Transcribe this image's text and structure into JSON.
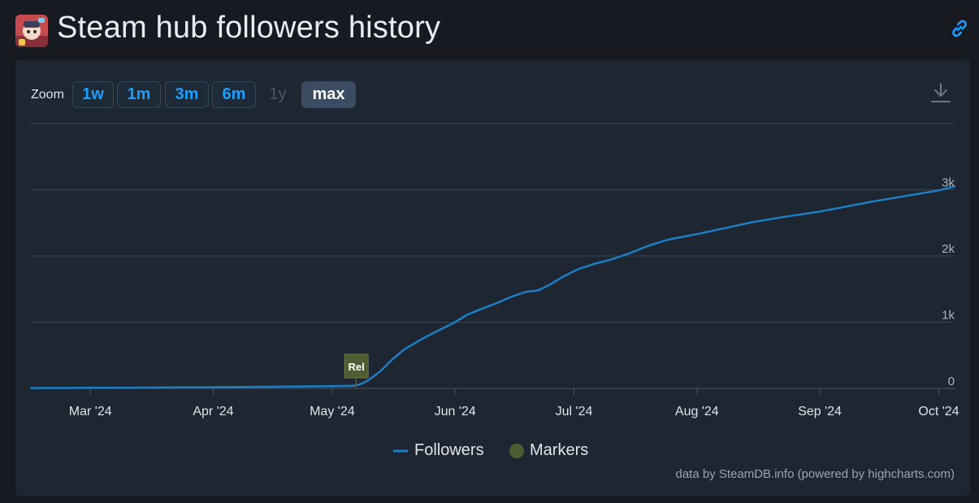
{
  "header": {
    "title": "Steam hub followers history",
    "app_icon": "game-capsule-icon",
    "link_icon": "link-icon"
  },
  "toolbar": {
    "zoom_label": "Zoom",
    "buttons": [
      {
        "label": "1w",
        "state": "enabled"
      },
      {
        "label": "1m",
        "state": "enabled"
      },
      {
        "label": "3m",
        "state": "enabled"
      },
      {
        "label": "6m",
        "state": "enabled"
      },
      {
        "label": "1y",
        "state": "disabled"
      },
      {
        "label": "max",
        "state": "active"
      }
    ],
    "download_icon": "download-icon"
  },
  "colors": {
    "page_bg": "#171a21",
    "panel_bg": "#1e2631",
    "series": "#1a7fc7",
    "marker": "#4f5d32",
    "grid": "#3a4452",
    "accent": "#1a9fff"
  },
  "chart_data": {
    "type": "line",
    "title": "Steam hub followers history",
    "xlabel": "",
    "ylabel": "",
    "x_type": "datetime",
    "x_range": [
      "2024-02-15",
      "2024-10-05"
    ],
    "ylim": [
      0,
      4000
    ],
    "y_ticks": [
      0,
      1000,
      2000,
      3000
    ],
    "y_tick_labels": [
      "0",
      "1k",
      "2k",
      "3k"
    ],
    "y_axis_position": "right",
    "x_ticks": [
      "2024-03-01",
      "2024-04-01",
      "2024-05-01",
      "2024-06-01",
      "2024-07-01",
      "2024-08-01",
      "2024-09-01",
      "2024-10-01"
    ],
    "x_tick_labels": [
      "Mar '24",
      "Apr '24",
      "May '24",
      "Jun '24",
      "Jul '24",
      "Aug '24",
      "Sep '24",
      "Oct '24"
    ],
    "grid": true,
    "legend": {
      "position": "bottom-center",
      "entries": [
        "Followers",
        "Markers"
      ]
    },
    "series": [
      {
        "name": "Followers",
        "color": "#1a7fc7",
        "points": [
          [
            "2024-02-15",
            5
          ],
          [
            "2024-03-01",
            8
          ],
          [
            "2024-03-15",
            12
          ],
          [
            "2024-04-01",
            18
          ],
          [
            "2024-04-15",
            25
          ],
          [
            "2024-05-01",
            33
          ],
          [
            "2024-05-06",
            38
          ],
          [
            "2024-05-08",
            60
          ],
          [
            "2024-05-10",
            120
          ],
          [
            "2024-05-13",
            250
          ],
          [
            "2024-05-16",
            430
          ],
          [
            "2024-05-19",
            580
          ],
          [
            "2024-05-22",
            690
          ],
          [
            "2024-05-25",
            790
          ],
          [
            "2024-05-28",
            880
          ],
          [
            "2024-06-01",
            1000
          ],
          [
            "2024-06-04",
            1110
          ],
          [
            "2024-06-08",
            1210
          ],
          [
            "2024-06-12",
            1300
          ],
          [
            "2024-06-15",
            1380
          ],
          [
            "2024-06-19",
            1460
          ],
          [
            "2024-06-22",
            1480
          ],
          [
            "2024-06-25",
            1570
          ],
          [
            "2024-06-28",
            1680
          ],
          [
            "2024-07-02",
            1800
          ],
          [
            "2024-07-06",
            1880
          ],
          [
            "2024-07-10",
            1940
          ],
          [
            "2024-07-15",
            2040
          ],
          [
            "2024-07-20",
            2160
          ],
          [
            "2024-07-25",
            2250
          ],
          [
            "2024-08-01",
            2330
          ],
          [
            "2024-08-08",
            2420
          ],
          [
            "2024-08-15",
            2510
          ],
          [
            "2024-08-22",
            2580
          ],
          [
            "2024-09-01",
            2670
          ],
          [
            "2024-09-08",
            2750
          ],
          [
            "2024-09-15",
            2830
          ],
          [
            "2024-09-22",
            2900
          ],
          [
            "2024-10-01",
            2990
          ],
          [
            "2024-10-05",
            3050
          ]
        ]
      }
    ],
    "markers": [
      {
        "x": "2024-05-07",
        "label": "Rel"
      }
    ]
  },
  "credits": "data by SteamDB.info (powered by highcharts.com)"
}
